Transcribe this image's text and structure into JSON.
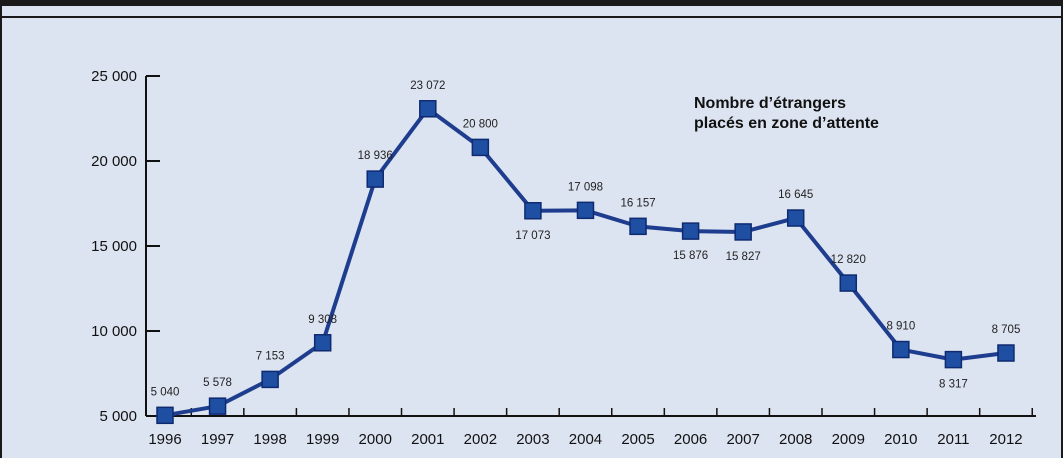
{
  "chart_data": {
    "type": "line",
    "title_lines": [
      "Nombre d’étrangers",
      "placés en zone d’attente"
    ],
    "categories": [
      "1996",
      "1997",
      "1998",
      "1999",
      "2000",
      "2001",
      "2002",
      "2003",
      "2004",
      "2005",
      "2006",
      "2007",
      "2008",
      "2009",
      "2010",
      "2011",
      "2012"
    ],
    "values": [
      5040,
      5578,
      7153,
      9308,
      18936,
      23072,
      20800,
      17073,
      17098,
      16157,
      15876,
      15827,
      16645,
      12820,
      8910,
      8317,
      8705
    ],
    "value_labels": [
      "5 040",
      "5 578",
      "7 153",
      "9 308",
      "18 936",
      "23 072",
      "20 800",
      "17 073",
      "17 098",
      "16 157",
      "15 876",
      "15 827",
      "16 645",
      "12 820",
      "8 910",
      "8 317",
      "8 705"
    ],
    "label_position": [
      "above",
      "above",
      "above",
      "above",
      "above",
      "above",
      "above",
      "below",
      "above",
      "above",
      "below",
      "below",
      "above",
      "above",
      "above",
      "below",
      "above"
    ],
    "y_ticks": [
      5000,
      10000,
      15000,
      20000,
      25000
    ],
    "y_tick_labels": [
      "5 000",
      "10 000",
      "15 000",
      "20 000",
      "25 000"
    ],
    "ylim": [
      5000,
      25000
    ],
    "grid": false,
    "colors": {
      "line": "#1f3d8f",
      "marker": "#1f4fa3",
      "marker_edge": "#0e2a70",
      "background": "#dde4f1"
    }
  }
}
